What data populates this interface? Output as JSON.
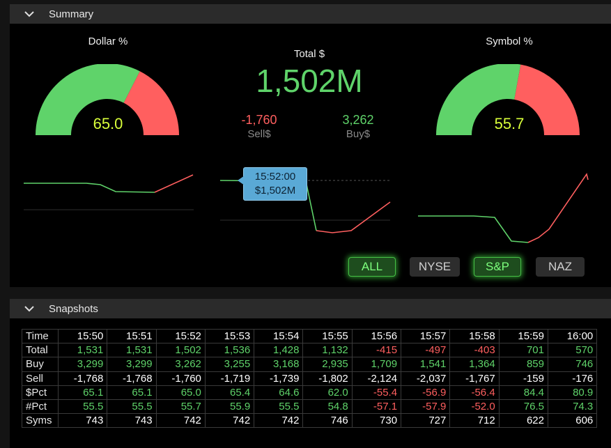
{
  "summary": {
    "title": "Summary",
    "dollar_label": "Dollar %",
    "dollar_value": "65.0",
    "dollar_pct": 65.0,
    "symbol_label": "Symbol %",
    "symbol_value": "55.7",
    "symbol_pct": 55.7,
    "total_label": "Total $",
    "total_value": "1,502M",
    "sell_value": "-1,760",
    "sell_label": "Sell$",
    "buy_value": "3,262",
    "buy_label": "Buy$",
    "tooltip_time": "15:52:00",
    "tooltip_value": "$1,502M",
    "buttons": [
      {
        "label": "ALL",
        "active": true
      },
      {
        "label": "NYSE",
        "active": false
      },
      {
        "label": "S&P",
        "active": true
      },
      {
        "label": "NAZ",
        "active": false
      }
    ],
    "colors": {
      "buy": "#5fd36a",
      "sell": "#ff5f5f",
      "value": "#d9ff3a",
      "tooltip": "#5aa9d6"
    }
  },
  "snapshots": {
    "title": "Snapshots",
    "times": [
      "15:50",
      "15:51",
      "15:52",
      "15:53",
      "15:54",
      "15:55",
      "15:56",
      "15:57",
      "15:58",
      "15:59",
      "16:00"
    ],
    "rows": [
      {
        "label": "Time",
        "values": [
          "15:50",
          "15:51",
          "15:52",
          "15:53",
          "15:54",
          "15:55",
          "15:56",
          "15:57",
          "15:58",
          "15:59",
          "16:00"
        ],
        "colors": [
          "w",
          "w",
          "w",
          "w",
          "w",
          "w",
          "w",
          "w",
          "w",
          "w",
          "w"
        ]
      },
      {
        "label": "Total",
        "values": [
          "1,531",
          "1,531",
          "1,502",
          "1,536",
          "1,428",
          "1,132",
          "-415",
          "-497",
          "-403",
          "701",
          "570"
        ],
        "colors": [
          "g",
          "g",
          "g",
          "g",
          "g",
          "g",
          "r",
          "r",
          "r",
          "g",
          "g"
        ]
      },
      {
        "label": "Buy",
        "values": [
          "3,299",
          "3,299",
          "3,262",
          "3,255",
          "3,168",
          "2,935",
          "1,709",
          "1,541",
          "1,364",
          "859",
          "746"
        ],
        "colors": [
          "g",
          "g",
          "g",
          "g",
          "g",
          "g",
          "g",
          "g",
          "g",
          "g",
          "g"
        ]
      },
      {
        "label": "Sell",
        "values": [
          "-1,768",
          "-1,768",
          "-1,760",
          "-1,719",
          "-1,739",
          "-1,802",
          "-2,124",
          "-2,037",
          "-1,767",
          "-159",
          "-176"
        ],
        "colors": [
          "w",
          "w",
          "w",
          "w",
          "w",
          "w",
          "w",
          "w",
          "w",
          "w",
          "w"
        ]
      },
      {
        "label": "$Pct",
        "values": [
          "65.1",
          "65.1",
          "65.0",
          "65.4",
          "64.6",
          "62.0",
          "-55.4",
          "-56.9",
          "-56.4",
          "84.4",
          "80.9"
        ],
        "colors": [
          "g",
          "g",
          "g",
          "g",
          "g",
          "g",
          "r",
          "r",
          "r",
          "g",
          "g"
        ]
      },
      {
        "label": "#Pct",
        "values": [
          "55.5",
          "55.5",
          "55.7",
          "55.9",
          "55.5",
          "54.8",
          "-57.1",
          "-57.9",
          "-52.0",
          "76.5",
          "74.3"
        ],
        "colors": [
          "g",
          "g",
          "g",
          "g",
          "g",
          "g",
          "r",
          "r",
          "r",
          "g",
          "g"
        ]
      },
      {
        "label": "Syms",
        "values": [
          "743",
          "743",
          "742",
          "742",
          "742",
          "746",
          "730",
          "727",
          "712",
          "622",
          "606"
        ],
        "colors": [
          "w",
          "w",
          "w",
          "w",
          "w",
          "w",
          "w",
          "w",
          "w",
          "w",
          "w"
        ]
      }
    ]
  }
}
